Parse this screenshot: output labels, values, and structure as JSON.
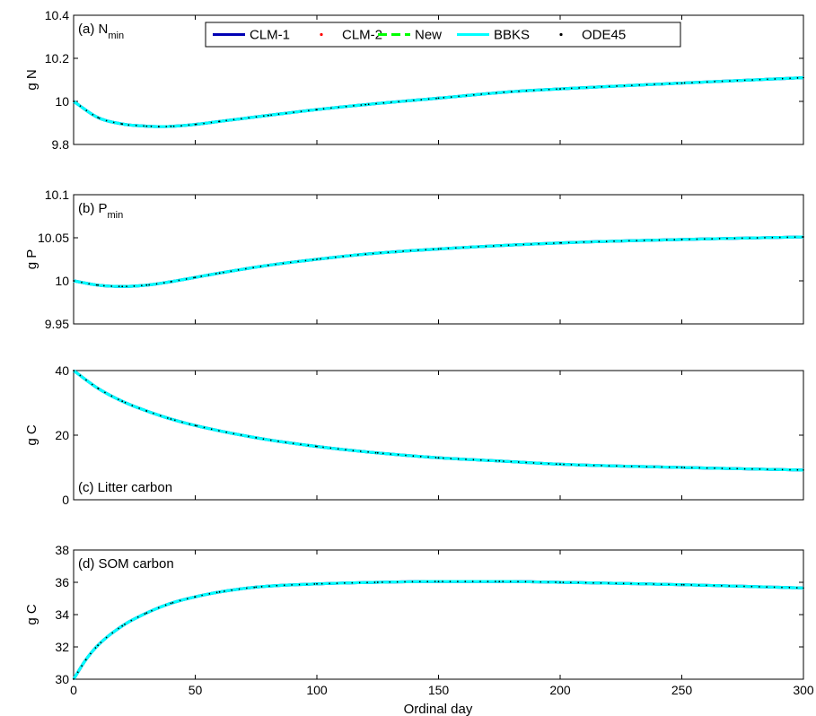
{
  "figure": {
    "xlabel": "Ordinal day",
    "legend": {
      "placement": "top-center",
      "entries": [
        {
          "name": "CLM-1",
          "color": "#0000b4",
          "style": "solid"
        },
        {
          "name": "CLM-2",
          "color": "#ff0000",
          "style": "dot"
        },
        {
          "name": "New",
          "color": "#00ff00",
          "style": "dashed"
        },
        {
          "name": "BBKS",
          "color": "#00ffff",
          "style": "solid"
        },
        {
          "name": "ODE45",
          "color": "#000000",
          "style": "dot"
        }
      ]
    }
  },
  "chart_data": [
    {
      "type": "line",
      "panel_label": "(a) N",
      "panel_sub": "min",
      "ylabel": "g N",
      "xlim": [
        0,
        300
      ],
      "ylim": [
        9.8,
        10.4
      ],
      "xticks": [
        "0",
        "50",
        "100",
        "150",
        "200",
        "250",
        "300"
      ],
      "yticks": [
        "9.8",
        "10",
        "10.2",
        "10.4"
      ],
      "ytick_values": [
        9.8,
        10.0,
        10.2,
        10.4
      ],
      "grid": false,
      "x": [
        0,
        10,
        20,
        30,
        35,
        40,
        50,
        60,
        80,
        100,
        120,
        150,
        180,
        200,
        250,
        300
      ],
      "y": [
        10.0,
        9.925,
        9.895,
        9.885,
        9.883,
        9.884,
        9.893,
        9.907,
        9.935,
        9.962,
        9.985,
        10.015,
        10.045,
        10.058,
        10.085,
        10.11
      ]
    },
    {
      "type": "line",
      "panel_label": "(b) P",
      "panel_sub": "min",
      "ylabel": "g P",
      "xlim": [
        0,
        300
      ],
      "ylim": [
        9.95,
        10.1
      ],
      "xticks": [
        "0",
        "50",
        "100",
        "150",
        "200",
        "250",
        "300"
      ],
      "yticks": [
        "9.95",
        "10",
        "10.05",
        "10.1"
      ],
      "ytick_values": [
        9.95,
        10.0,
        10.05,
        10.1
      ],
      "grid": false,
      "x": [
        0,
        10,
        20,
        30,
        40,
        50,
        60,
        80,
        100,
        120,
        150,
        200,
        250,
        300
      ],
      "y": [
        10.0,
        9.995,
        9.9935,
        9.995,
        9.999,
        10.004,
        10.009,
        10.018,
        10.025,
        10.031,
        10.037,
        10.044,
        10.048,
        10.051
      ]
    },
    {
      "type": "line",
      "panel_label": "(c) Litter carbon",
      "ylabel": "g C",
      "xlim": [
        0,
        300
      ],
      "ylim": [
        0,
        40
      ],
      "xticks": [
        "0",
        "50",
        "100",
        "150",
        "200",
        "250",
        "300"
      ],
      "yticks": [
        "0",
        "20",
        "40"
      ],
      "ytick_values": [
        0,
        20,
        40
      ],
      "grid": false,
      "x": [
        0,
        10,
        20,
        30,
        40,
        50,
        75,
        100,
        125,
        150,
        175,
        200,
        250,
        300
      ],
      "y": [
        40.0,
        34.5,
        30.5,
        27.5,
        25.0,
        23.0,
        19.2,
        16.5,
        14.5,
        13.0,
        12.0,
        11.0,
        10.0,
        9.2
      ]
    },
    {
      "type": "line",
      "panel_label": "(d) SOM carbon",
      "ylabel": "g C",
      "xlim": [
        0,
        300
      ],
      "ylim": [
        30,
        38
      ],
      "xticks": [
        "0",
        "50",
        "100",
        "150",
        "200",
        "250",
        "300"
      ],
      "yticks": [
        "30",
        "32",
        "34",
        "36",
        "38"
      ],
      "ytick_values": [
        30,
        32,
        34,
        36,
        38
      ],
      "grid": false,
      "x": [
        0,
        5,
        10,
        20,
        30,
        40,
        50,
        60,
        75,
        100,
        125,
        150,
        175,
        200,
        250,
        300
      ],
      "y": [
        30.0,
        31.2,
        32.1,
        33.3,
        34.1,
        34.7,
        35.1,
        35.4,
        35.7,
        35.9,
        36.0,
        36.05,
        36.05,
        36.0,
        35.85,
        35.65
      ]
    }
  ]
}
